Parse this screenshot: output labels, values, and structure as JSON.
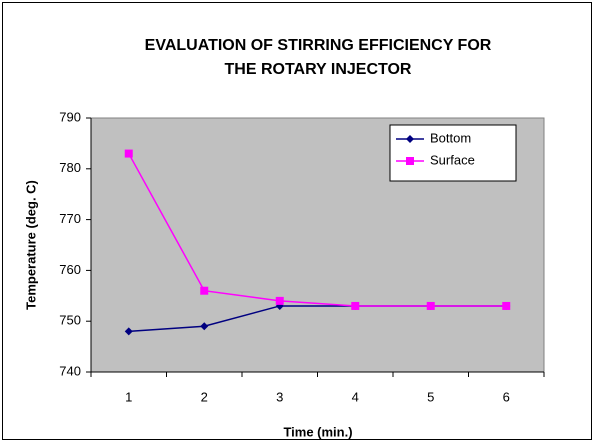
{
  "chart_data": {
    "type": "line",
    "title": [
      "EVALUATION OF STIRRING EFFICIENCY FOR",
      "THE ROTARY INJECTOR"
    ],
    "x_label": "Time (min.)",
    "y_label": "Temperature (deg. C)",
    "categories": [
      "1",
      "2",
      "3",
      "4",
      "5",
      "6"
    ],
    "series": [
      {
        "name": "Bottom",
        "color": "#000080",
        "marker": "diamond",
        "values": [
          748,
          749,
          753,
          753,
          753,
          753
        ]
      },
      {
        "name": "Surface",
        "color": "#ff00ff",
        "marker": "square",
        "values": [
          783,
          756,
          754,
          753,
          753,
          753
        ]
      }
    ],
    "ylim": [
      740,
      790
    ],
    "yticks": [
      740,
      750,
      760,
      770,
      780,
      790
    ],
    "grid": false,
    "legend": "upper right",
    "plot_background": "#c0c0c0"
  }
}
